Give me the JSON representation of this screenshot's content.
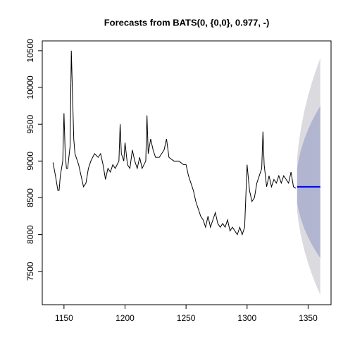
{
  "chart_data": {
    "type": "line",
    "title": "Forecasts from BATS(0, {0,0}, 0.977, -)",
    "xlim": [
      1132.2,
      1368.8
    ],
    "xticks": [
      1150,
      1200,
      1250,
      1300,
      1350
    ],
    "ylim": [
      7047,
      10633
    ],
    "yticks": [
      7500,
      8000,
      8500,
      9000,
      9500,
      10000,
      10500
    ],
    "bands": [
      {
        "color": "#dbdbdf",
        "x": [
          1341,
          1342,
          1344,
          1347,
          1350,
          1353,
          1356,
          1360
        ],
        "upper": [
          9041,
          9203,
          9433,
          9685,
          9887,
          10061,
          10215,
          10400
        ],
        "lower": [
          8321,
          8185,
          7993,
          7780,
          7611,
          7465,
          7335,
          7180
        ]
      },
      {
        "color": "#b1b5d0",
        "x": [
          1341,
          1342,
          1344,
          1347,
          1350,
          1353,
          1356,
          1360
        ],
        "upper": [
          8896,
          8998,
          9142,
          9301,
          9428,
          9537,
          9634,
          9750
        ],
        "lower": [
          8433,
          8343,
          8216,
          8076,
          7964,
          7868,
          7782,
          7680
        ]
      }
    ],
    "series": [
      {
        "color": "#000000",
        "width": 1,
        "x": [
          1141,
          1143,
          1145,
          1146,
          1147,
          1149,
          1150,
          1151,
          1152,
          1153,
          1155,
          1156,
          1157,
          1158,
          1159,
          1160,
          1162,
          1164,
          1166,
          1168,
          1170,
          1172,
          1175,
          1178,
          1180,
          1182,
          1184,
          1186,
          1188,
          1190,
          1192,
          1195,
          1196,
          1197,
          1199,
          1200,
          1202,
          1204,
          1206,
          1208,
          1210,
          1212,
          1214,
          1217,
          1218,
          1219,
          1221,
          1223,
          1225,
          1228,
          1230,
          1232,
          1234,
          1236,
          1240,
          1244,
          1248,
          1250,
          1252,
          1254,
          1256,
          1258,
          1260,
          1262,
          1264,
          1266,
          1268,
          1270,
          1272,
          1274,
          1276,
          1278,
          1280,
          1282,
          1284,
          1286,
          1288,
          1290,
          1292,
          1294,
          1296,
          1298,
          1300,
          1302,
          1304,
          1306,
          1308,
          1310,
          1312,
          1313,
          1314,
          1316,
          1318,
          1320,
          1322,
          1324,
          1326,
          1328,
          1330,
          1332,
          1334,
          1336,
          1338,
          1340
        ],
        "values": [
          8980,
          8800,
          8600,
          8600,
          8800,
          9000,
          9650,
          9100,
          8900,
          8900,
          9200,
          10500,
          9900,
          9300,
          9100,
          9050,
          8950,
          8800,
          8650,
          8700,
          8900,
          9000,
          9100,
          9050,
          9100,
          8950,
          8750,
          8900,
          8850,
          8950,
          8900,
          9000,
          9500,
          9100,
          9000,
          9250,
          8950,
          8900,
          9150,
          9000,
          8900,
          9050,
          8900,
          9000,
          9620,
          9100,
          9300,
          9150,
          9050,
          9050,
          9100,
          9150,
          9300,
          9050,
          9000,
          9000,
          8950,
          8950,
          8800,
          8700,
          8600,
          8450,
          8350,
          8250,
          8200,
          8100,
          8250,
          8100,
          8200,
          8300,
          8150,
          8100,
          8150,
          8100,
          8200,
          8050,
          8100,
          8050,
          8000,
          8100,
          8000,
          8100,
          8950,
          8600,
          8450,
          8500,
          8700,
          8800,
          8900,
          9400,
          8950,
          8650,
          8800,
          8650,
          8750,
          8700,
          8800,
          8700,
          8800,
          8750,
          8700,
          8850,
          8650,
          8630
        ]
      },
      {
        "color": "#0000ff",
        "width": 2,
        "x": [
          1341,
          1360
        ],
        "values": [
          8650,
          8650
        ]
      }
    ]
  }
}
